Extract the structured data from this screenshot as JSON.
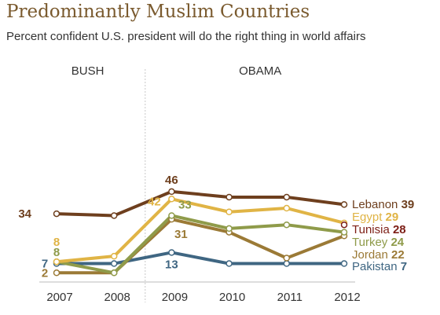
{
  "title": "Predominantly Muslim Countries",
  "subtitle": "Percent confident U.S. president will do the right thing in world affairs",
  "chart_data": {
    "type": "line",
    "x": [
      "2007",
      "2008",
      "2009",
      "2010",
      "2011",
      "2012"
    ],
    "ylim": [
      0,
      50
    ],
    "grid": false,
    "period_labels": [
      {
        "label": "BUSH",
        "from": "2007",
        "to": "2008"
      },
      {
        "label": "OBAMA",
        "from": "2009",
        "to": "2012"
      }
    ],
    "series": [
      {
        "name": "Lebanon",
        "color": "#6e3f1e",
        "values": [
          34,
          33,
          46,
          43,
          43,
          39
        ]
      },
      {
        "name": "Egypt",
        "color": "#e0b445",
        "values": [
          8,
          11,
          42,
          35,
          37,
          29
        ]
      },
      {
        "name": "Tunisia",
        "color": "#7d1e16",
        "values": [
          null,
          null,
          null,
          null,
          null,
          28
        ]
      },
      {
        "name": "Turkey",
        "color": "#8f9b4a",
        "values": [
          8,
          2,
          33,
          26,
          28,
          24
        ]
      },
      {
        "name": "Jordan",
        "color": "#9b7a36",
        "values": [
          2,
          2,
          31,
          24,
          10,
          22
        ]
      },
      {
        "name": "Pakistan",
        "color": "#3f6682",
        "values": [
          7,
          7,
          13,
          7,
          7,
          7
        ]
      }
    ],
    "point_labels": [
      {
        "series": "Lebanon",
        "x": "2007",
        "text": "34"
      },
      {
        "series": "Lebanon",
        "x": "2009",
        "text": "46"
      },
      {
        "series": "Egypt",
        "x": "2007",
        "text": "8"
      },
      {
        "series": "Egypt",
        "x": "2009",
        "text": "42"
      },
      {
        "series": "Turkey",
        "x": "2007",
        "text": "8"
      },
      {
        "series": "Turkey",
        "x": "2009",
        "text": "33"
      },
      {
        "series": "Jordan",
        "x": "2007",
        "text": "2"
      },
      {
        "series": "Jordan",
        "x": "2009",
        "text": "31"
      },
      {
        "series": "Pakistan",
        "x": "2007",
        "text": "7"
      },
      {
        "series": "Pakistan",
        "x": "2009",
        "text": "13"
      }
    ],
    "end_labels": [
      {
        "series": "Lebanon",
        "name": "Lebanon",
        "value": "39"
      },
      {
        "series": "Egypt",
        "name": "Egypt",
        "value": "29"
      },
      {
        "series": "Tunisia",
        "name": "Tunisia",
        "value": "28"
      },
      {
        "series": "Turkey",
        "name": "Turkey",
        "value": "24"
      },
      {
        "series": "Jordan",
        "name": "Jordan",
        "value": "22"
      },
      {
        "series": "Pakistan",
        "name": "Pakistan",
        "value": "7"
      }
    ]
  }
}
